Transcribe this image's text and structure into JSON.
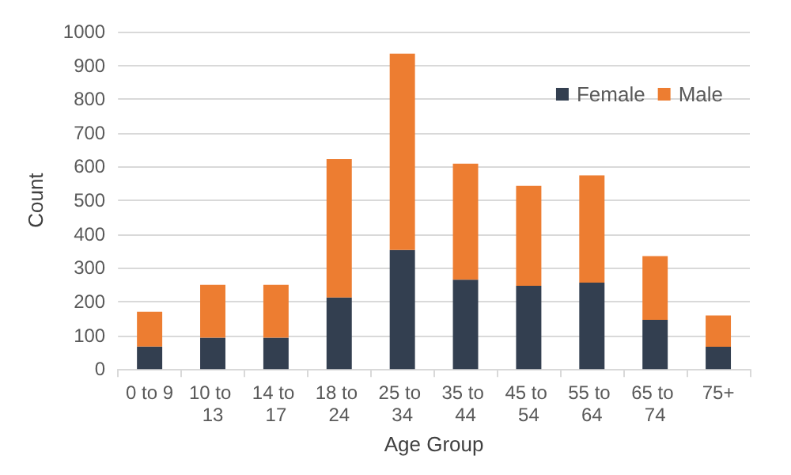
{
  "chart_data": {
    "type": "bar",
    "stacked": true,
    "xlabel": "Age Group",
    "ylabel": "Count",
    "categories": [
      "0 to 9",
      "10 to 13",
      "14 to 17",
      "18 to 24",
      "25 to 34",
      "35 to 44",
      "45 to 54",
      "55 to 64",
      "65 to 74",
      "75+"
    ],
    "series": [
      {
        "name": "Female",
        "color": "#333f50",
        "values": [
          67,
          93,
          93,
          212,
          353,
          265,
          247,
          256,
          146,
          66
        ]
      },
      {
        "name": "Male",
        "color": "#ed7d31",
        "values": [
          103,
          157,
          157,
          410,
          582,
          344,
          296,
          318,
          189,
          93
        ]
      }
    ],
    "ylim": [
      0,
      1000
    ],
    "yticks": [
      0,
      100,
      200,
      300,
      400,
      500,
      600,
      700,
      800,
      900,
      1000
    ],
    "grid": "y",
    "legend": "top right"
  }
}
